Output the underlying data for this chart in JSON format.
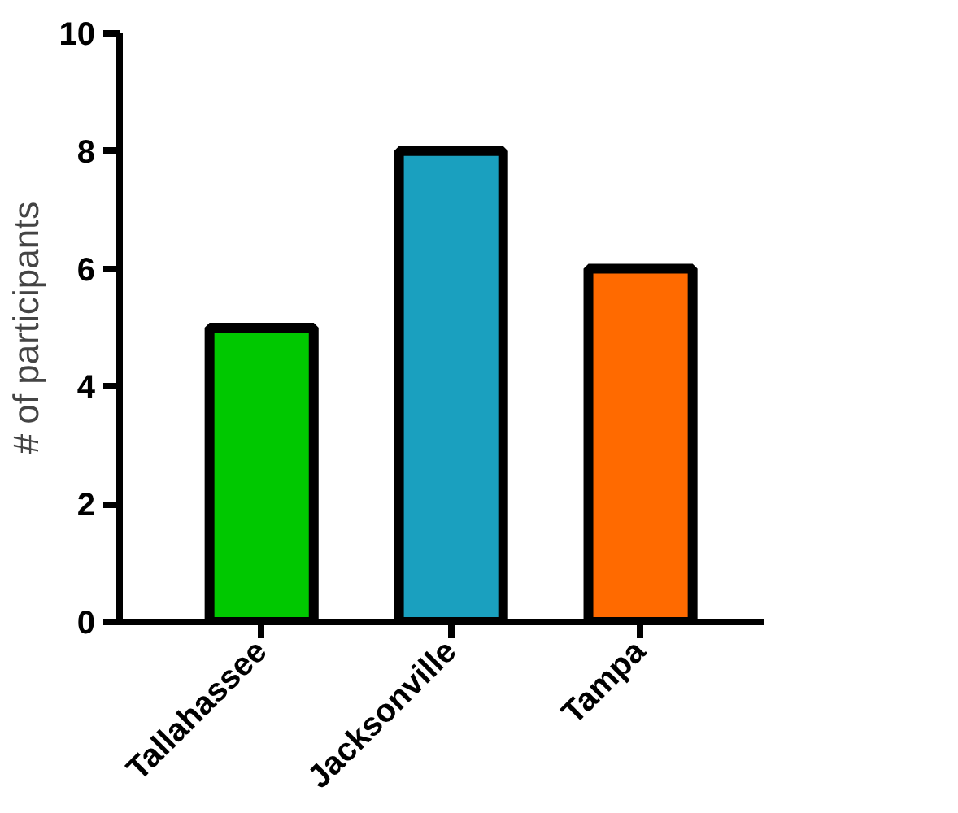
{
  "chart_data": {
    "type": "bar",
    "categories": [
      "Tallahassee",
      "Jacksonville",
      "Tampa"
    ],
    "values": [
      5,
      8,
      6
    ],
    "colors": [
      "#00c800",
      "#1aa0bf",
      "#ff6a00"
    ],
    "ylabel": "# of participants",
    "ylim": [
      0,
      10
    ],
    "yticks": [
      0,
      2,
      4,
      6,
      8,
      10
    ],
    "grid": false
  }
}
